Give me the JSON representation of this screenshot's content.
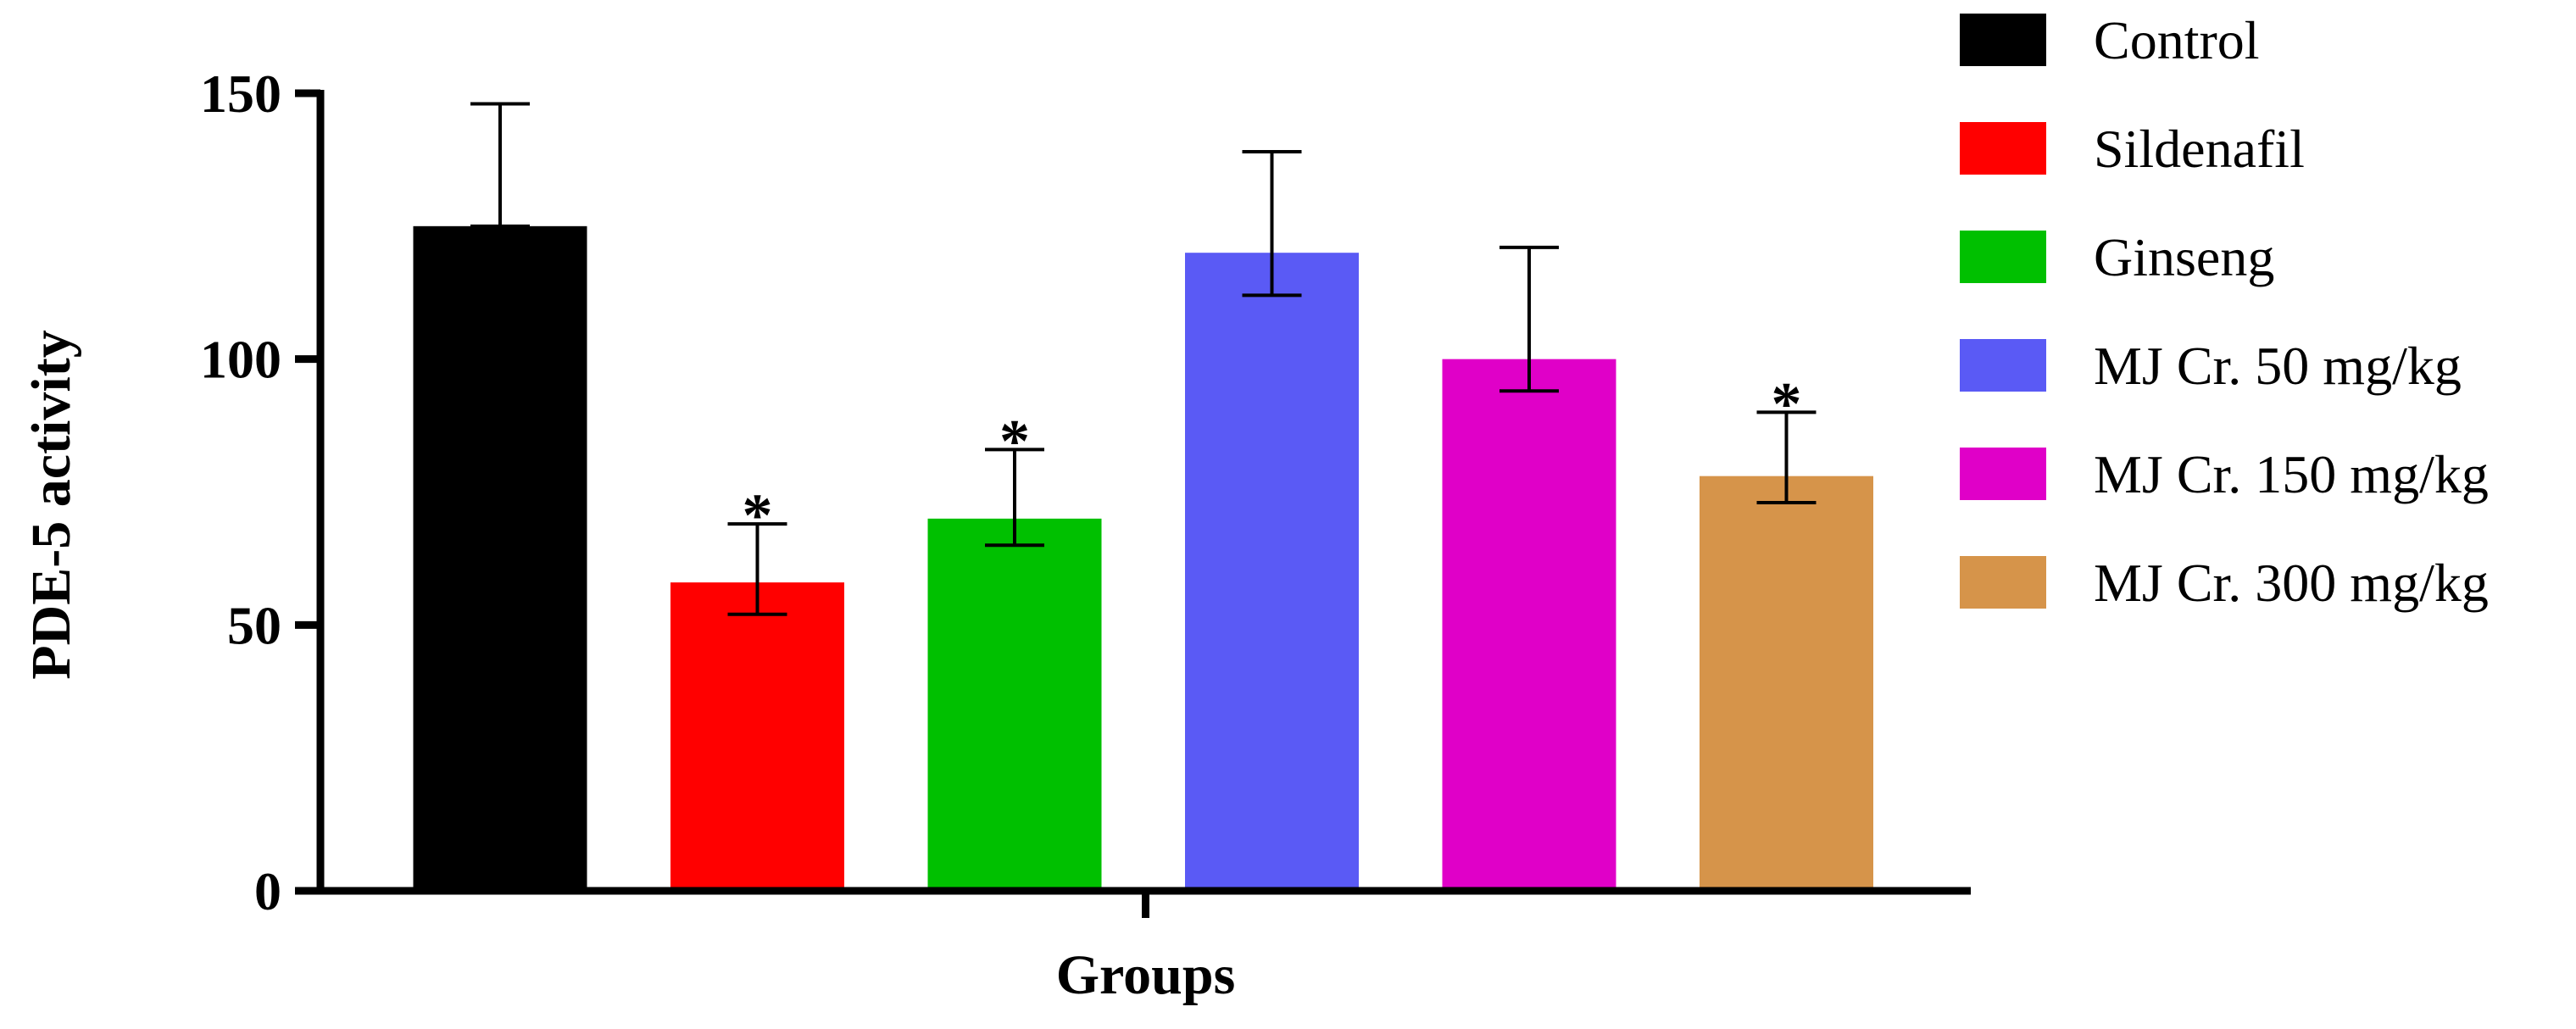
{
  "chart_data": {
    "type": "bar",
    "xlabel": "Groups",
    "ylabel": "PDE-5 activity",
    "ylim": [
      0,
      150
    ],
    "yticks": [
      "0",
      "50",
      "100",
      "150"
    ],
    "yticks_values": [
      0,
      50,
      100,
      150
    ],
    "grid": false,
    "legend_position": "right",
    "categories": [
      "Control",
      "Sildenafil",
      "Ginseng",
      "MJ Cr. 50 mg/kg",
      "MJ Cr. 150 mg/kg",
      "MJ Cr. 300 mg/kg"
    ],
    "values": [
      125,
      58,
      70,
      120,
      100,
      78
    ],
    "error_upper": [
      148,
      69,
      83,
      139,
      121,
      90
    ],
    "error_lower": [
      125,
      52,
      65,
      112,
      94,
      73
    ],
    "significance": [
      "",
      "*",
      "*",
      "",
      "",
      "*"
    ],
    "colors": [
      "#000000",
      "#ff0000",
      "#00c000",
      "#5a5af5",
      "#e000c8",
      "#d6944a"
    ]
  }
}
